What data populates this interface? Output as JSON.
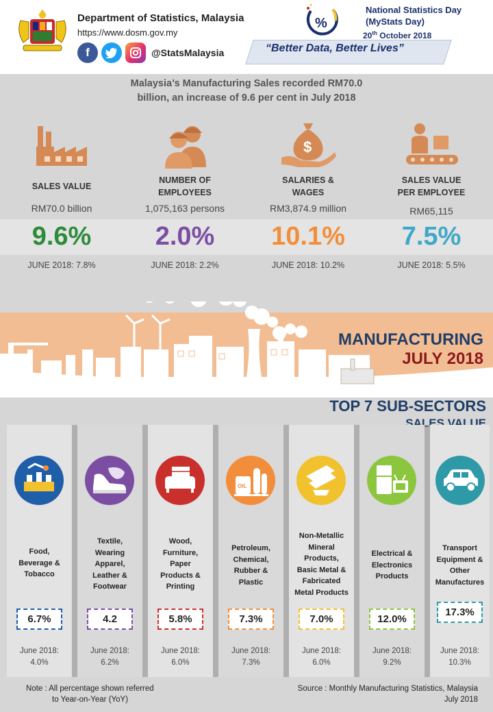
{
  "header": {
    "org_name": "Department of Statistics, Malaysia",
    "url": "https://www.dosm.gov.my",
    "social_handle": "@StatsMalaysia",
    "nsd_title_1": "National Statistics Day",
    "nsd_title_2": "(MyStats Day)",
    "nsd_date_day": "20",
    "nsd_date_sup": "th",
    "nsd_date_rest": " October 2018",
    "tagline": "“Better Data, Better Lives”"
  },
  "headline": {
    "line1": "Malaysia’s Manufacturing Sales recorded RM70.0",
    "line2": "billion, an increase of 9.6 per cent in July 2018"
  },
  "stats": [
    {
      "label1": "SALES VALUE",
      "label2": "",
      "value": "RM70.0 billion",
      "pct": "9.6%",
      "june": "JUNE 2018: 7.8%",
      "color": "#2e8b3a",
      "icon": "factory-icon"
    },
    {
      "label1": "NUMBER OF",
      "label2": "EMPLOYEES",
      "value": "1,075,163  persons",
      "pct": "2.0%",
      "june": "JUNE 2018: 2.2%",
      "color": "#7b4ea3",
      "icon": "workers-icon"
    },
    {
      "label1": "SALARIES &",
      "label2": "WAGES",
      "value": "RM3,874.9 million",
      "pct": "10.1%",
      "june": "JUNE 2018: 10.2%",
      "color": "#f28e3b",
      "icon": "money-bag-icon"
    },
    {
      "label1": "SALES VALUE",
      "label2": "PER EMPLOYEE",
      "value": "RM65,115",
      "pct": "7.5%",
      "june": "JUNE 2018: 5.5%",
      "color": "#3fa8c9",
      "icon": "conveyor-icon"
    }
  ],
  "banner": {
    "line1": "MANUFACTURING",
    "line2": "JULY 2018"
  },
  "top7": {
    "title": "TOP 7 SUB-SECTORS",
    "subtitle": "SALES VALUE"
  },
  "sectors": [
    {
      "name": [
        "Food,",
        "Beverage &",
        "Tobacco"
      ],
      "pct": "6.7%",
      "june1": "June 2018:",
      "june2": "4.0%",
      "color": "#1f5ea8",
      "icon": "food-factory-icon"
    },
    {
      "name": [
        "Textile,",
        "Wearing",
        "Apparel,",
        "Leather &",
        "Footwear"
      ],
      "pct": "4.2",
      "june1": "June 2018:",
      "june2": "6.2%",
      "color": "#7b4ea3",
      "icon": "shoe-icon"
    },
    {
      "name": [
        "Wood,",
        "Furniture,",
        "Paper",
        "Products &",
        "Printing"
      ],
      "pct": "5.8%",
      "june1": "June 2018:",
      "june2": "6.0%",
      "color": "#c9302c",
      "icon": "furniture-icon"
    },
    {
      "name": [
        "Petroleum,",
        "Chemical,",
        "Rubber &",
        "Plastic"
      ],
      "pct": "7.3%",
      "june1": "June 2018:",
      "june2": "7.3%",
      "color": "#f28e3b",
      "icon": "oil-drum-icon"
    },
    {
      "name": [
        "Non-Metallic",
        "Mineral",
        "Products,",
        "Basic Metal &",
        "Fabricated",
        "Metal Products"
      ],
      "pct": "7.0%",
      "june1": "June 2018:",
      "june2": "6.0%",
      "color": "#f2c12e",
      "icon": "metal-beam-icon"
    },
    {
      "name": [
        "Electrical &",
        "Electronics",
        "Products"
      ],
      "pct": "12.0%",
      "june1": "June 2018:",
      "june2": "9.2%",
      "color": "#8cc63f",
      "icon": "electronics-icon"
    },
    {
      "name": [
        "Transport",
        "Equipment &",
        "Other",
        "Manufactures"
      ],
      "pct": "17.3%",
      "june1": "June 2018:",
      "june2": "10.3%",
      "color": "#2e9aa8",
      "icon": "car-icon"
    }
  ],
  "footer": {
    "note1": "Note : All percentage shown referred",
    "note2": "to Year-on-Year (YoY)",
    "source1": "Source : Monthly Manufacturing Statistics, Malaysia",
    "source2": "July 2018"
  }
}
